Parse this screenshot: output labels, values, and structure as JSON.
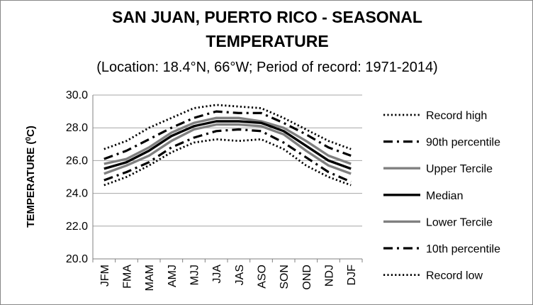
{
  "chart_data": {
    "type": "line",
    "title_lines": [
      "SAN JUAN, PUERTO RICO - SEASONAL",
      "TEMPERATURE"
    ],
    "subtitle": "(Location: 18.4°N, 66°W; Period of record: 1971-2014)",
    "ylabel_prefix": "TEMPERATURE (",
    "ylabel_sup": "0",
    "ylabel_suffix": "C)",
    "xlabel": "",
    "ylim": [
      20.0,
      30.0
    ],
    "yticks": [
      20.0,
      22.0,
      24.0,
      26.0,
      28.0,
      30.0
    ],
    "ytick_labels": [
      "20.0",
      "22.0",
      "24.0",
      "26.0",
      "28.0",
      "30.0"
    ],
    "grid": true,
    "legend_position": "right",
    "categories": [
      "JFM",
      "FMA",
      "MAM",
      "AMJ",
      "MJJ",
      "JJA",
      "JAS",
      "ASO",
      "SON",
      "OND",
      "NDJ",
      "DJF"
    ],
    "series": [
      {
        "name": "Record high",
        "color": "#000000",
        "style": "dotted",
        "values": [
          26.7,
          27.2,
          28.0,
          28.6,
          29.2,
          29.4,
          29.3,
          29.2,
          28.6,
          27.9,
          27.2,
          26.7
        ]
      },
      {
        "name": "90th percentile",
        "color": "#000000",
        "style": "dashdot",
        "values": [
          26.1,
          26.6,
          27.3,
          28.0,
          28.6,
          29.0,
          28.9,
          28.9,
          28.3,
          27.6,
          26.8,
          26.3
        ]
      },
      {
        "name": "Upper Tercile",
        "color": "#808080",
        "style": "solid",
        "values": [
          25.8,
          26.1,
          26.8,
          27.7,
          28.3,
          28.6,
          28.6,
          28.4,
          28.0,
          27.2,
          26.3,
          25.8
        ]
      },
      {
        "name": "Median",
        "color": "#000000",
        "style": "solid",
        "values": [
          25.5,
          25.9,
          26.6,
          27.5,
          28.1,
          28.4,
          28.4,
          28.3,
          27.8,
          26.9,
          26.0,
          25.5
        ]
      },
      {
        "name": "Lower Tercile",
        "color": "#808080",
        "style": "solid",
        "values": [
          25.2,
          25.7,
          26.3,
          27.2,
          27.9,
          28.2,
          28.2,
          28.1,
          27.6,
          26.6,
          25.7,
          25.2
        ]
      },
      {
        "name": "10th percentile",
        "color": "#000000",
        "style": "dashdot",
        "values": [
          24.8,
          25.3,
          25.9,
          26.8,
          27.4,
          27.8,
          27.9,
          27.8,
          27.1,
          26.2,
          25.3,
          24.7
        ]
      },
      {
        "name": "Record low",
        "color": "#000000",
        "style": "dotted",
        "values": [
          24.5,
          25.0,
          25.7,
          26.5,
          27.1,
          27.3,
          27.2,
          27.3,
          26.7,
          25.7,
          25.0,
          24.5
        ]
      }
    ]
  }
}
